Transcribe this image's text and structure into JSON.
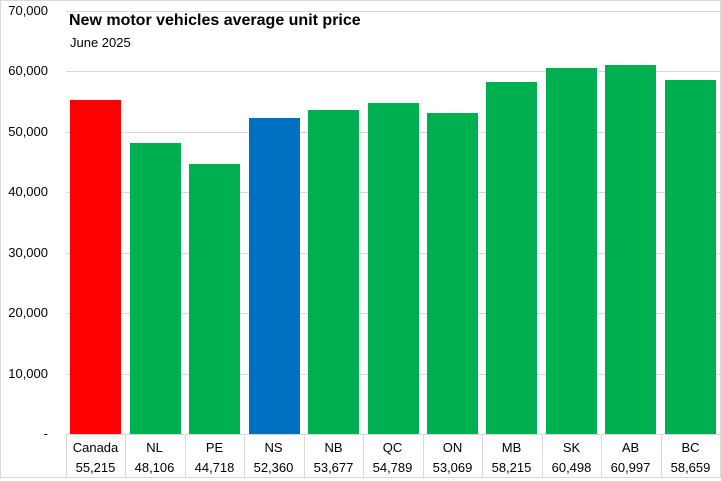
{
  "chart_data": {
    "type": "bar",
    "title": "New motor vehicles average unit price",
    "subtitle": "June 2025",
    "categories": [
      "Canada",
      "NL",
      "PE",
      "NS",
      "NB",
      "QC",
      "ON",
      "MB",
      "SK",
      "AB",
      "BC"
    ],
    "values": [
      55215,
      48106,
      44718,
      52360,
      53677,
      54789,
      53069,
      58215,
      60498,
      60997,
      58659
    ],
    "value_labels": [
      "55,215",
      "48,106",
      "44,718",
      "52,360",
      "53,677",
      "54,789",
      "53,069",
      "58,215",
      "60,498",
      "60,997",
      "58,659"
    ],
    "bar_colors": [
      "#ff0000",
      "#00b050",
      "#00b050",
      "#0070c0",
      "#00b050",
      "#00b050",
      "#00b050",
      "#00b050",
      "#00b050",
      "#00b050",
      "#00b050"
    ],
    "highlight_colors": {
      "canada": "#ff0000",
      "featured_province": "#0070c0",
      "default_province": "#00b050"
    },
    "xlabel": "",
    "ylabel": "",
    "ylim": [
      0,
      70000
    ],
    "ytick_interval": 10000,
    "ytick_labels_top_to_bottom": [
      "70,000",
      "60,000",
      "50,000",
      "40,000",
      "30,000",
      "20,000",
      "10,000",
      "-"
    ],
    "grid": true,
    "gridline_color": "#d9d9d9",
    "legend": "none",
    "value_row_shown_below_categories": true
  }
}
